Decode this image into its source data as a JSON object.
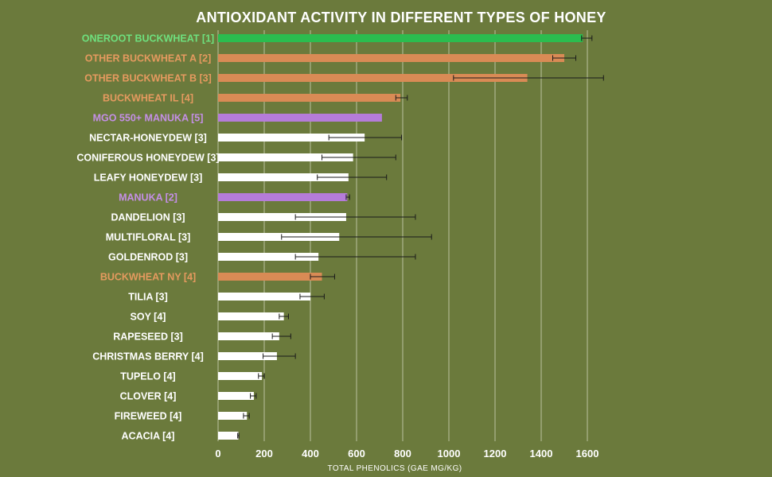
{
  "chart_data": {
    "type": "bar",
    "orientation": "horizontal",
    "title": "ANTIOXIDANT ACTIVITY IN DIFFERENT TYPES OF HONEY",
    "xlabel": "TOTAL PHENOLICS (GAE MG/KG)",
    "ylabel": "",
    "xlim": [
      0,
      1700
    ],
    "xticks": [
      0,
      200,
      400,
      600,
      800,
      1000,
      1200,
      1400,
      1600
    ],
    "grid": "vertical",
    "legend": "none",
    "categories": [
      {
        "label": "ONEROOT BUCKWHEAT [1]",
        "value": 1580,
        "err_low": 1575,
        "err_high": 1620,
        "group": "oneroot"
      },
      {
        "label": "OTHER BUCKWHEAT A [2]",
        "value": 1500,
        "err_low": 1450,
        "err_high": 1550,
        "group": "buckwheat"
      },
      {
        "label": "OTHER BUCKWHEAT B [3]",
        "value": 1340,
        "err_low": 1020,
        "err_high": 1670,
        "group": "buckwheat"
      },
      {
        "label": "BUCKWHEAT IL [4]",
        "value": 790,
        "err_low": 770,
        "err_high": 820,
        "group": "buckwheat"
      },
      {
        "label": "MGO 550+ MANUKA [5]",
        "value": 710,
        "err_low": 710,
        "err_high": 710,
        "group": "manuka"
      },
      {
        "label": "NECTAR-HONEYDEW [3]",
        "value": 635,
        "err_low": 480,
        "err_high": 795,
        "group": "other"
      },
      {
        "label": "CONIFEROUS HONEYDEW [3]",
        "value": 585,
        "err_low": 450,
        "err_high": 770,
        "group": "other"
      },
      {
        "label": "LEAFY HONEYDEW [3]",
        "value": 565,
        "err_low": 430,
        "err_high": 730,
        "group": "other"
      },
      {
        "label": "MANUKA [2]",
        "value": 560,
        "err_low": 555,
        "err_high": 570,
        "group": "manuka"
      },
      {
        "label": "DANDELION [3]",
        "value": 555,
        "err_low": 335,
        "err_high": 855,
        "group": "other"
      },
      {
        "label": "MULTIFLORAL [3]",
        "value": 525,
        "err_low": 275,
        "err_high": 925,
        "group": "other"
      },
      {
        "label": "GOLDENROD [3]",
        "value": 435,
        "err_low": 335,
        "err_high": 855,
        "group": "other"
      },
      {
        "label": "BUCKWHEAT NY [4]",
        "value": 450,
        "err_low": 400,
        "err_high": 505,
        "group": "buckwheat"
      },
      {
        "label": "TILIA [3]",
        "value": 400,
        "err_low": 355,
        "err_high": 460,
        "group": "other"
      },
      {
        "label": "SOY [4]",
        "value": 285,
        "err_low": 265,
        "err_high": 305,
        "group": "other"
      },
      {
        "label": "RAPESEED [3]",
        "value": 265,
        "err_low": 235,
        "err_high": 315,
        "group": "other"
      },
      {
        "label": "CHRISTMAS BERRY [4]",
        "value": 255,
        "err_low": 195,
        "err_high": 335,
        "group": "other"
      },
      {
        "label": "TUPELO [4]",
        "value": 190,
        "err_low": 175,
        "err_high": 200,
        "group": "other"
      },
      {
        "label": "CLOVER [4]",
        "value": 155,
        "err_low": 140,
        "err_high": 165,
        "group": "other"
      },
      {
        "label": "FIREWEED [4]",
        "value": 125,
        "err_low": 110,
        "err_high": 135,
        "group": "other"
      },
      {
        "label": "ACACIA [4]",
        "value": 88,
        "err_low": 85,
        "err_high": 90,
        "group": "other"
      }
    ],
    "colors": {
      "background": "#6b7a3c",
      "oneroot": "#2bbd4f",
      "buckwheat": "#d98b55",
      "manuka": "#b57cd9",
      "other": "#ffffff",
      "oneroot_label": "#6ee07e",
      "buckwheat_label": "#e59a5f",
      "manuka_label": "#c48fe6",
      "other_label": "#ffffff",
      "gridline": "#c9cfb3",
      "errorbar": "#1a1a1a"
    }
  }
}
